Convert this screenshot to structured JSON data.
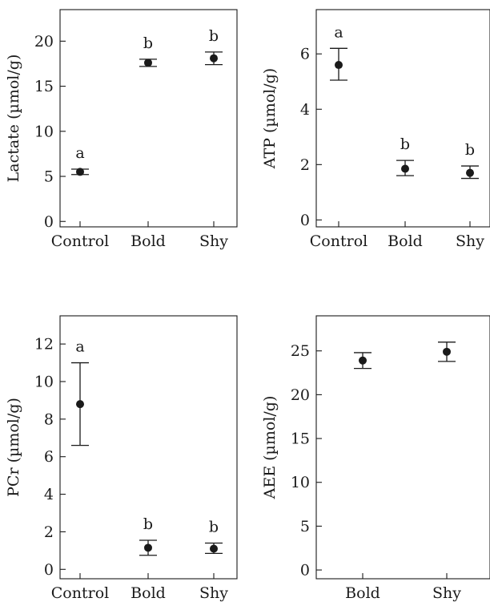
{
  "chart_data": [
    {
      "type": "scatter",
      "title": "",
      "xlabel": "",
      "ylabel": "Lactate (µmol/g)",
      "ylim": [
        -0.6,
        23.5
      ],
      "yticks": [
        0,
        5,
        10,
        15,
        20
      ],
      "categories": [
        "Control",
        "Bold",
        "Shy"
      ],
      "values": [
        5.5,
        17.6,
        18.1
      ],
      "error_low": [
        5.2,
        17.2,
        17.4
      ],
      "error_high": [
        5.8,
        18.0,
        18.8
      ],
      "group_letters": [
        "a",
        "b",
        "b"
      ],
      "grid": false
    },
    {
      "type": "scatter",
      "title": "",
      "xlabel": "",
      "ylabel": "ATP (µmol/g)",
      "ylim": [
        -0.25,
        7.6
      ],
      "yticks": [
        0,
        2,
        4,
        6
      ],
      "categories": [
        "Control",
        "Bold",
        "Shy"
      ],
      "values": [
        5.6,
        1.85,
        1.7
      ],
      "error_low": [
        5.05,
        1.6,
        1.5
      ],
      "error_high": [
        6.2,
        2.15,
        1.95
      ],
      "group_letters": [
        "a",
        "b",
        "b"
      ],
      "grid": false
    },
    {
      "type": "scatter",
      "title": "",
      "xlabel": "",
      "ylabel": "PCr (µmol/g)",
      "ylim": [
        -0.5,
        13.5
      ],
      "yticks": [
        0,
        2,
        4,
        6,
        8,
        10,
        12
      ],
      "categories": [
        "Control",
        "Bold",
        "Shy"
      ],
      "values": [
        8.8,
        1.15,
        1.1
      ],
      "error_low": [
        6.6,
        0.75,
        0.85
      ],
      "error_high": [
        11.0,
        1.55,
        1.4
      ],
      "group_letters": [
        "a",
        "b",
        "b"
      ],
      "grid": false
    },
    {
      "type": "scatter",
      "title": "",
      "xlabel": "",
      "ylabel": "AEE (µmol/g)",
      "ylim": [
        -1.0,
        29.0
      ],
      "yticks": [
        0,
        5,
        10,
        15,
        20,
        25
      ],
      "categories": [
        "Bold",
        "Shy"
      ],
      "values": [
        23.9,
        24.9
      ],
      "error_low": [
        23.0,
        23.8
      ],
      "error_high": [
        24.8,
        26.0
      ],
      "group_letters": [
        "",
        ""
      ],
      "grid": false
    }
  ]
}
